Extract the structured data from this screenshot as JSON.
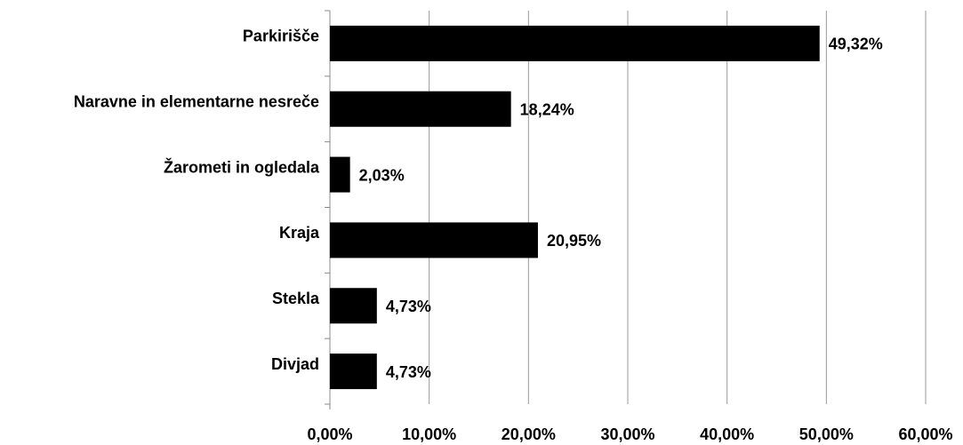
{
  "chart_data": {
    "type": "hbar",
    "categories": [
      "Parkirišče",
      "Naravne in elementarne nesreče",
      "Žarometi in ogledala",
      "Kraja",
      "Stekla",
      "Divjad"
    ],
    "values": [
      49.32,
      18.24,
      2.03,
      20.95,
      4.73,
      4.73
    ],
    "value_labels": [
      "49,32%",
      "18,24%",
      "2,03%",
      "20,95%",
      "4,73%",
      "4,73%"
    ],
    "color": "#000000",
    "xlim": [
      0,
      60
    ],
    "xticks": [
      {
        "value": 0,
        "label": "0,00%"
      },
      {
        "value": 10,
        "label": "10,00%"
      },
      {
        "value": 20,
        "label": "20,00%"
      },
      {
        "value": 30,
        "label": "30,00%"
      },
      {
        "value": 40,
        "label": "40,00%"
      },
      {
        "value": 50,
        "label": "50,00%"
      },
      {
        "value": 60,
        "label": "60,00%"
      }
    ],
    "grid": true
  }
}
